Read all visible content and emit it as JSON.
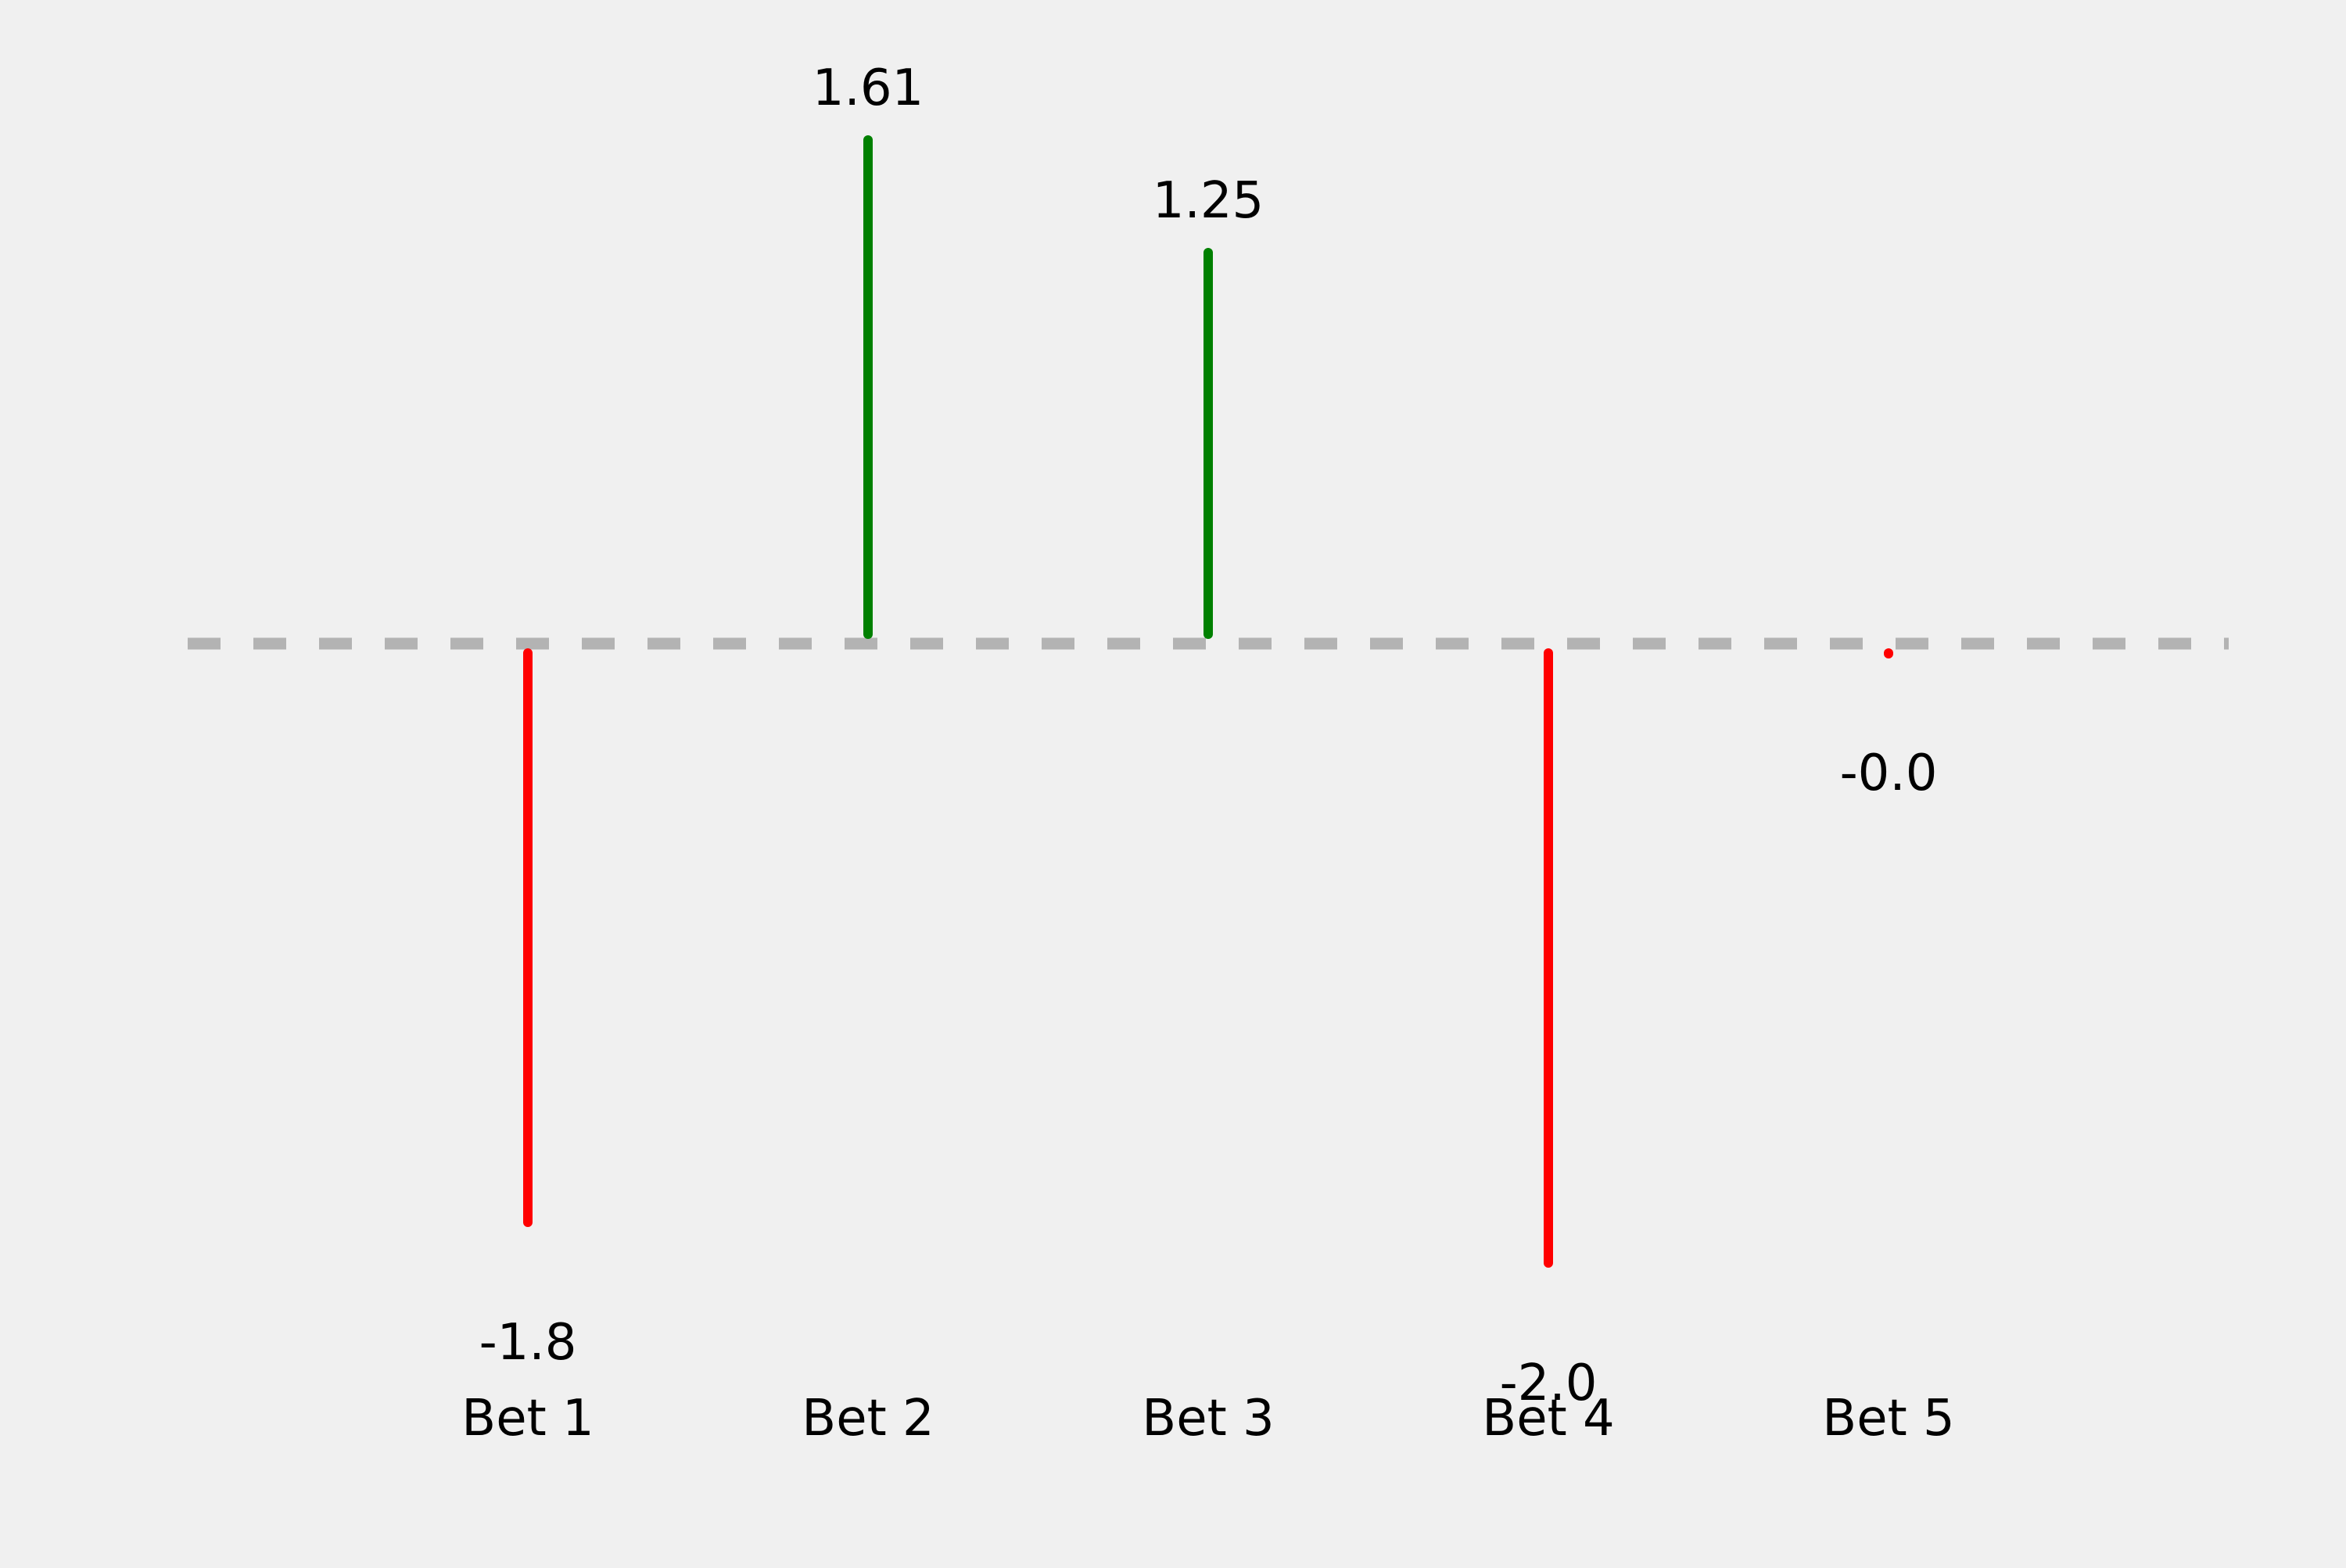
{
  "chart_data": {
    "type": "bar",
    "categories": [
      "Bet 1",
      "Bet 2",
      "Bet 3",
      "Bet 4",
      "Bet 5"
    ],
    "values": [
      -1.85,
      1.61,
      1.25,
      -1.98,
      -0.03
    ],
    "data_labels": [
      "-1.8",
      "1.61",
      "1.25",
      "-2.0",
      "-0.0"
    ],
    "title": "",
    "xlabel": "",
    "ylabel": "",
    "ylim": [
      -2.3,
      2.0
    ],
    "zero_line": true,
    "grid": false,
    "legend": "none",
    "colors": {
      "positive": "#008000",
      "negative": "#ff0000",
      "zero_line": "#b3b3b3",
      "background": "#f0f0f0"
    }
  }
}
